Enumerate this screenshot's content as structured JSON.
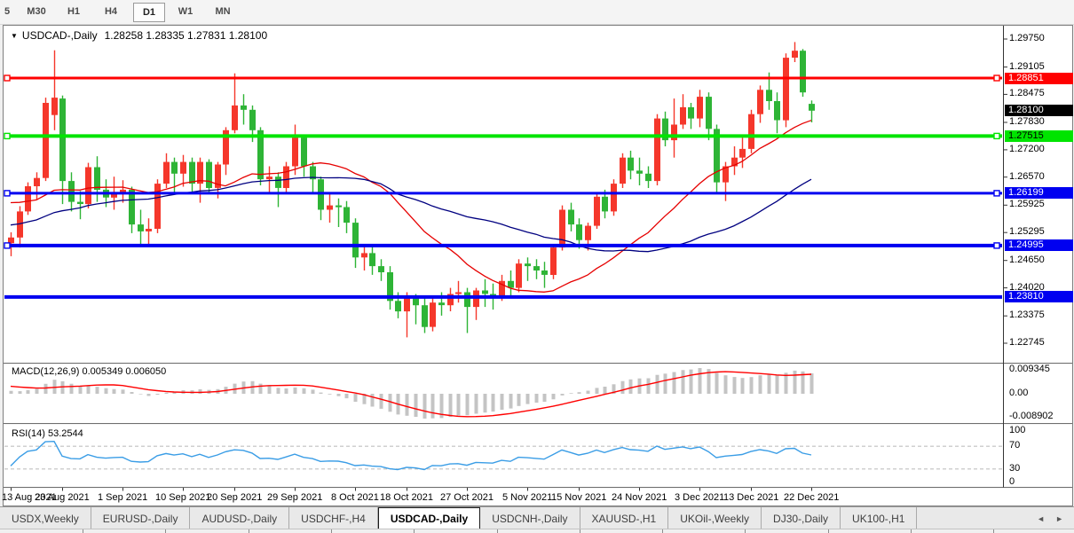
{
  "toolbar": {
    "timeframes": [
      "5",
      "M30",
      "H1",
      "H4",
      "D1",
      "W1",
      "MN"
    ],
    "active": "D1"
  },
  "chart_window": {
    "dropdown_icon": "▼",
    "title": "USDCAD-,Daily",
    "ohlc": "1.28258 1.28335 1.27831 1.28100"
  },
  "price_axis": {
    "ticks": [
      "1.29750",
      "1.29105",
      "1.28475",
      "1.27830",
      "1.27200",
      "1.26570",
      "1.25925",
      "1.25295",
      "1.24650",
      "1.24020",
      "1.23375",
      "1.22745"
    ],
    "current_price": "1.28100",
    "current_badge_color": "#000000"
  },
  "hlines": [
    {
      "price": 1.28851,
      "label": "1.28851",
      "color": "#ff0000",
      "text_color": "#ffffff",
      "width": 3,
      "handles": true
    },
    {
      "price": 1.27515,
      "label": "1.27515",
      "color": "#00e400",
      "text_color": "#000000",
      "width": 4,
      "handles": true
    },
    {
      "price": 1.26199,
      "label": "1.26199",
      "color": "#0000f0",
      "text_color": "#ffffff",
      "width": 3,
      "handles": true
    },
    {
      "price": 1.24995,
      "label": "1.24995",
      "color": "#0000f0",
      "text_color": "#ffffff",
      "width": 4,
      "handles": true
    },
    {
      "price": 1.2381,
      "label": "1.23810",
      "color": "#0000f0",
      "text_color": "#ffffff",
      "width": 4,
      "handles": false
    }
  ],
  "macd_panel": {
    "label": "MACD(12,26,9) 0.005349 0.006050",
    "axis_labels": [
      "0.009345",
      "0.00",
      "-0.008902"
    ],
    "histogram_color": "#c4c4c4",
    "signal_color": "#ff0000"
  },
  "rsi_panel": {
    "label": "RSI(14) 53.2544",
    "axis_labels": [
      "100",
      "70",
      "30",
      "0"
    ],
    "levels": [
      70,
      30
    ],
    "line_color": "#3a9de6",
    "level_color": "#c0c0c0"
  },
  "date_axis": {
    "labels": [
      {
        "text": "13 Aug 2021",
        "index": 0
      },
      {
        "text": "23 Aug 2021",
        "index": 6
      },
      {
        "text": "1 Sep 2021",
        "index": 13
      },
      {
        "text": "10 Sep 2021",
        "index": 20
      },
      {
        "text": "20 Sep 2021",
        "index": 26
      },
      {
        "text": "29 Sep 2021",
        "index": 33
      },
      {
        "text": "8 Oct 2021",
        "index": 40
      },
      {
        "text": "18 Oct 2021",
        "index": 46
      },
      {
        "text": "27 Oct 2021",
        "index": 53
      },
      {
        "text": "5 Nov 2021",
        "index": 60
      },
      {
        "text": "15 Nov 2021",
        "index": 66
      },
      {
        "text": "24 Nov 2021",
        "index": 73
      },
      {
        "text": "3 Dec 2021",
        "index": 80
      },
      {
        "text": "13 Dec 2021",
        "index": 86
      },
      {
        "text": "22 Dec 2021",
        "index": 93
      }
    ]
  },
  "tabs": {
    "items": [
      "USDX,Weekly",
      "EURUSD-,Daily",
      "AUDUSD-,Daily",
      "USDCHF-,H4",
      "USDCAD-,Daily",
      "USDCNH-,Daily",
      "XAUUSD-,H1",
      "UKOil-,Weekly",
      "DJ30-,Daily",
      "UK100-,H1"
    ],
    "active_index": 4,
    "scroll_left_icon": "◄",
    "scroll_right_icon": "►"
  },
  "colors": {
    "candle_up": "#f5372b",
    "candle_down": "#2eb436",
    "ma_fast": "#e60000",
    "ma_slow": "#000080",
    "frame": "#7f7f7f"
  },
  "chart_data": {
    "type": "candlestick",
    "symbol": "USDCAD",
    "timeframe": "Daily",
    "title": "USDCAD-,Daily",
    "moving_averages": [
      {
        "type": "sma",
        "period": 20,
        "color": "#e60000"
      },
      {
        "type": "sma",
        "period": 40,
        "color": "#000080"
      }
    ],
    "indicators": [
      {
        "name": "MACD",
        "params": [
          12,
          26,
          9
        ],
        "values": [
          0.005349,
          0.00605
        ]
      },
      {
        "name": "RSI",
        "params": [
          14
        ],
        "value": 53.2544
      }
    ],
    "ylim": [
      1.22745,
      1.2975
    ],
    "pre_closes": [
      1.2482,
      1.247,
      1.2458,
      1.2472,
      1.249,
      1.2502,
      1.2486,
      1.247,
      1.2455,
      1.2465,
      1.248,
      1.2495,
      1.2512,
      1.2522,
      1.2505,
      1.2492,
      1.2502,
      1.2516,
      1.2526,
      1.2536,
      1.255,
      1.2565,
      1.2582,
      1.2596,
      1.2606,
      1.2616,
      1.2622,
      1.2612,
      1.26,
      1.2592,
      1.2596,
      1.2606,
      1.2616,
      1.2626,
      1.2632,
      1.2622,
      1.2612,
      1.2602,
      1.2582,
      1.2562
    ],
    "candles": [
      [
        1.2505,
        1.253,
        1.2475,
        1.2518
      ],
      [
        1.2518,
        1.259,
        1.2495,
        1.2578
      ],
      [
        1.2578,
        1.2645,
        1.257,
        1.2636
      ],
      [
        1.2636,
        1.2668,
        1.2605,
        1.2655
      ],
      [
        1.2655,
        1.284,
        1.2648,
        1.2828
      ],
      [
        1.28,
        1.2949,
        1.2765,
        1.284
      ],
      [
        1.2838,
        1.2845,
        1.2595,
        1.2648
      ],
      [
        1.2648,
        1.2668,
        1.2578,
        1.26
      ],
      [
        1.26,
        1.2625,
        1.256,
        1.2595
      ],
      [
        1.2595,
        1.269,
        1.2585,
        1.268
      ],
      [
        1.268,
        1.2705,
        1.26,
        1.2628
      ],
      [
        1.2628,
        1.2652,
        1.2588,
        1.261
      ],
      [
        1.261,
        1.2658,
        1.2582,
        1.2622
      ],
      [
        1.2622,
        1.265,
        1.2598,
        1.2628
      ],
      [
        1.2628,
        1.2635,
        1.2528,
        1.2548
      ],
      [
        1.2548,
        1.2582,
        1.2496,
        1.2532
      ],
      [
        1.2532,
        1.2562,
        1.2502,
        1.2538
      ],
      [
        1.2538,
        1.2652,
        1.2528,
        1.2642
      ],
      [
        1.2642,
        1.2712,
        1.2632,
        1.2692
      ],
      [
        1.2692,
        1.2702,
        1.2622,
        1.2665
      ],
      [
        1.2665,
        1.2708,
        1.2635,
        1.2692
      ],
      [
        1.2692,
        1.2702,
        1.2618,
        1.2642
      ],
      [
        1.2642,
        1.2702,
        1.2598,
        1.2692
      ],
      [
        1.2692,
        1.2698,
        1.2618,
        1.2632
      ],
      [
        1.2632,
        1.2692,
        1.2608,
        1.2686
      ],
      [
        1.2686,
        1.2772,
        1.2662,
        1.2765
      ],
      [
        1.2765,
        1.2896,
        1.2758,
        1.2822
      ],
      [
        1.2822,
        1.2848,
        1.2778,
        1.2812
      ],
      [
        1.2812,
        1.2822,
        1.2738,
        1.2765
      ],
      [
        1.2765,
        1.2772,
        1.2638,
        1.2652
      ],
      [
        1.2652,
        1.2682,
        1.2618,
        1.2658
      ],
      [
        1.2658,
        1.2668,
        1.2588,
        1.2632
      ],
      [
        1.2632,
        1.2692,
        1.2618,
        1.2682
      ],
      [
        1.2682,
        1.2778,
        1.2662,
        1.2748
      ],
      [
        1.2748,
        1.2752,
        1.2658,
        1.2682
      ],
      [
        1.2682,
        1.2692,
        1.2618,
        1.2652
      ],
      [
        1.2652,
        1.2658,
        1.2558,
        1.2582
      ],
      [
        1.2582,
        1.2622,
        1.2552,
        1.2592
      ],
      [
        1.2592,
        1.2608,
        1.2542,
        1.2588
      ],
      [
        1.2588,
        1.2602,
        1.2528,
        1.2552
      ],
      [
        1.2552,
        1.2562,
        1.2448,
        1.2472
      ],
      [
        1.2472,
        1.2502,
        1.2442,
        1.2482
      ],
      [
        1.2482,
        1.2502,
        1.2432,
        1.2452
      ],
      [
        1.2452,
        1.2468,
        1.2418,
        1.2438
      ],
      [
        1.2438,
        1.2452,
        1.2352,
        1.2372
      ],
      [
        1.2372,
        1.2392,
        1.2332,
        1.2348
      ],
      [
        1.2348,
        1.2392,
        1.2288,
        1.2378
      ],
      [
        1.2378,
        1.2388,
        1.2318,
        1.2362
      ],
      [
        1.2362,
        1.2378,
        1.2298,
        1.2312
      ],
      [
        1.2312,
        1.2378,
        1.2302,
        1.2368
      ],
      [
        1.2368,
        1.2392,
        1.2338,
        1.2362
      ],
      [
        1.2362,
        1.2402,
        1.2348,
        1.2388
      ],
      [
        1.2388,
        1.2418,
        1.2368,
        1.2392
      ],
      [
        1.2392,
        1.2402,
        1.2298,
        1.2358
      ],
      [
        1.2358,
        1.2402,
        1.2328,
        1.2396
      ],
      [
        1.2396,
        1.2422,
        1.2358,
        1.2388
      ],
      [
        1.2388,
        1.2412,
        1.2352,
        1.2382
      ],
      [
        1.2382,
        1.2432,
        1.2372,
        1.2418
      ],
      [
        1.2418,
        1.2442,
        1.2382,
        1.2402
      ],
      [
        1.2402,
        1.2468,
        1.2392,
        1.2458
      ],
      [
        1.2458,
        1.2472,
        1.2418,
        1.2452
      ],
      [
        1.2452,
        1.2468,
        1.2422,
        1.2442
      ],
      [
        1.2442,
        1.2462,
        1.2402,
        1.2432
      ],
      [
        1.2432,
        1.2502,
        1.2422,
        1.2495
      ],
      [
        1.2495,
        1.2592,
        1.2488,
        1.2582
      ],
      [
        1.2582,
        1.2598,
        1.2532,
        1.2548
      ],
      [
        1.2548,
        1.2562,
        1.2492,
        1.2512
      ],
      [
        1.2512,
        1.2552,
        1.2488,
        1.2545
      ],
      [
        1.2545,
        1.2622,
        1.2538,
        1.2612
      ],
      [
        1.2612,
        1.2628,
        1.2562,
        1.2578
      ],
      [
        1.2578,
        1.2652,
        1.2568,
        1.2642
      ],
      [
        1.2642,
        1.2712,
        1.2632,
        1.2702
      ],
      [
        1.2702,
        1.2718,
        1.2652,
        1.2672
      ],
      [
        1.2672,
        1.2702,
        1.2638,
        1.2665
      ],
      [
        1.2665,
        1.2682,
        1.2632,
        1.2648
      ],
      [
        1.2648,
        1.2802,
        1.2638,
        1.2792
      ],
      [
        1.2792,
        1.2808,
        1.2728,
        1.2742
      ],
      [
        1.2742,
        1.2838,
        1.2702,
        1.2778
      ],
      [
        1.2778,
        1.2848,
        1.2768,
        1.2818
      ],
      [
        1.2818,
        1.2828,
        1.2768,
        1.2792
      ],
      [
        1.2792,
        1.2858,
        1.2772,
        1.2842
      ],
      [
        1.2842,
        1.2852,
        1.2742,
        1.2768
      ],
      [
        1.2768,
        1.2778,
        1.2622,
        1.2645
      ],
      [
        1.2645,
        1.2692,
        1.2602,
        1.2682
      ],
      [
        1.2682,
        1.2728,
        1.2662,
        1.2702
      ],
      [
        1.2702,
        1.2748,
        1.2678,
        1.2722
      ],
      [
        1.2722,
        1.2812,
        1.2712,
        1.2802
      ],
      [
        1.2802,
        1.2868,
        1.2782,
        1.2858
      ],
      [
        1.2858,
        1.2898,
        1.2812,
        1.2832
      ],
      [
        1.2832,
        1.2852,
        1.2758,
        1.2788
      ],
      [
        1.2788,
        1.2942,
        1.2772,
        1.2932
      ],
      [
        1.2932,
        1.2968,
        1.2922,
        1.2948
      ],
      [
        1.2948,
        1.2952,
        1.2842,
        1.2852
      ],
      [
        1.28258,
        1.28335,
        1.27831,
        1.281
      ]
    ]
  }
}
